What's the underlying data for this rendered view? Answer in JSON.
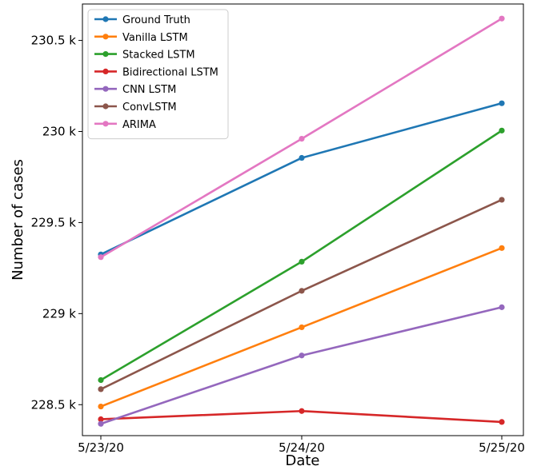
{
  "chart_data": {
    "type": "line",
    "title": "",
    "xlabel": "Date",
    "ylabel": "Number of cases",
    "categories": [
      "5/23/20",
      "5/24/20",
      "5/25/20"
    ],
    "y_ticks": [
      228500,
      229000,
      229500,
      230000,
      230500
    ],
    "y_tick_labels": [
      "228.5 k",
      "229 k",
      "229.5 k",
      "230 k",
      "230.5 k"
    ],
    "ylim": [
      228330,
      230700
    ],
    "grid": false,
    "legend_position": "top-left",
    "series": [
      {
        "name": "Ground Truth",
        "color": "#1f77b4",
        "values": [
          229325,
          229855,
          230155
        ]
      },
      {
        "name": "Vanilla LSTM",
        "color": "#ff7f0e",
        "values": [
          228490,
          228925,
          229360
        ]
      },
      {
        "name": "Stacked LSTM",
        "color": "#2ca02c",
        "values": [
          228635,
          229285,
          230005
        ]
      },
      {
        "name": "Bidirectional LSTM",
        "color": "#d62728",
        "values": [
          228420,
          228465,
          228405
        ]
      },
      {
        "name": "CNN LSTM",
        "color": "#9467bd",
        "values": [
          228395,
          228770,
          229035
        ]
      },
      {
        "name": "ConvLSTM",
        "color": "#8c564b",
        "values": [
          228585,
          229125,
          229625
        ]
      },
      {
        "name": "ARIMA",
        "color": "#e377c2",
        "values": [
          229310,
          229960,
          230620
        ]
      }
    ]
  }
}
